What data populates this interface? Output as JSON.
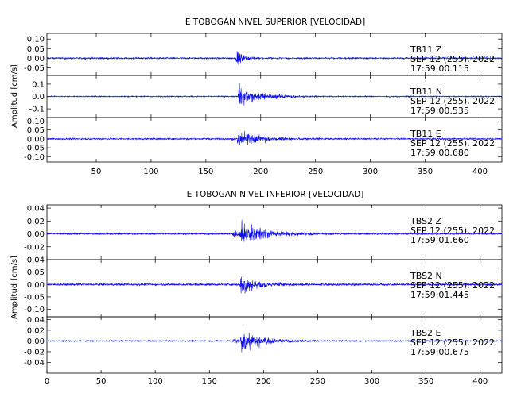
{
  "chart_data": [
    {
      "type": "line",
      "title": "E TOBOGAN NIVEL SUPERIOR [VELOCIDAD]",
      "ylabel": "Amplitud [cm/s]",
      "xlim": [
        5,
        420
      ],
      "xticks": [
        50,
        100,
        150,
        200,
        250,
        300,
        350,
        400
      ],
      "trace_color": "#1010ee",
      "panels": [
        {
          "station": "TB11",
          "component": "Z",
          "date": "SEP 12 (255), 2022",
          "time": "17:59:00.115",
          "ylim": [
            -0.09,
            0.13
          ],
          "yticks": [
            0.1,
            0.05,
            0.0,
            -0.05
          ],
          "yticklabels": [
            "0.10",
            "0.05",
            "0.00",
            "-0.05"
          ],
          "noise": 0.003,
          "bursts": [
            {
              "t0": 177,
              "amp": 0.085,
              "tau": 7
            }
          ]
        },
        {
          "station": "TB11",
          "component": "N",
          "date": "SEP 12 (255), 2022",
          "time": "17:59:00.535",
          "ylim": [
            -0.17,
            0.17
          ],
          "yticks": [
            0.1,
            0.0,
            -0.1
          ],
          "yticklabels": [
            "0.1",
            "0.0",
            "-0.1"
          ],
          "noise": 0.003,
          "bursts": [
            {
              "t0": 179,
              "amp": 0.15,
              "tau": 9
            },
            {
              "t0": 188,
              "amp": 0.05,
              "tau": 30
            }
          ]
        },
        {
          "station": "TB11",
          "component": "E",
          "date": "SEP 12 (255), 2022",
          "time": "17:59:00.680",
          "ylim": [
            -0.13,
            0.12
          ],
          "yticks": [
            0.1,
            0.05,
            0.0,
            -0.05,
            -0.1
          ],
          "yticklabels": [
            "0.10",
            "0.05",
            "0.00",
            "-0.05",
            "-0.10"
          ],
          "noise": 0.003,
          "bursts": [
            {
              "t0": 172,
              "amp": 0.012,
              "tau": 8
            },
            {
              "t0": 178,
              "amp": 0.09,
              "tau": 10
            },
            {
              "t0": 186,
              "amp": 0.035,
              "tau": 28
            }
          ]
        }
      ],
      "xticklabels": [
        "50",
        "100",
        "150",
        "200",
        "250",
        "300",
        "350",
        "400"
      ]
    },
    {
      "type": "line",
      "title": "E TOBOGAN NIVEL INFERIOR [VELOCIDAD]",
      "ylabel": "Amplitud [cm/s]",
      "xlim": [
        0,
        420
      ],
      "xticks": [
        0,
        50,
        100,
        150,
        200,
        250,
        300,
        350,
        400
      ],
      "trace_color": "#1010ee",
      "panels": [
        {
          "station": "TBS2",
          "component": "Z",
          "date": "SEP 12 (255), 2022",
          "time": "17:59:01.660",
          "ylim": [
            -0.04,
            0.045
          ],
          "yticks": [
            0.04,
            0.02,
            0.0,
            -0.02,
            -0.04
          ],
          "yticklabels": [
            "0.04",
            "0.02",
            "0.00",
            "-0.02",
            "-0.04"
          ],
          "noise": 0.0008,
          "bursts": [
            {
              "t0": 171,
              "amp": 0.012,
              "tau": 6
            },
            {
              "t0": 178,
              "amp": 0.03,
              "tau": 12
            },
            {
              "t0": 185,
              "amp": 0.012,
              "tau": 35
            }
          ]
        },
        {
          "station": "TBS2",
          "component": "N",
          "date": "SEP 12 (255), 2022",
          "time": "17:59:01.445",
          "ylim": [
            -0.13,
            0.1
          ],
          "yticks": [
            0.05,
            0.0,
            -0.05,
            -0.1
          ],
          "yticklabels": [
            "0.05",
            "0.00",
            "-0.05",
            "-0.10"
          ],
          "noise": 0.003,
          "bursts": [
            {
              "t0": 178,
              "amp": 0.075,
              "tau": 8
            },
            {
              "t0": 185,
              "amp": 0.02,
              "tau": 30
            }
          ]
        },
        {
          "station": "TBS2",
          "component": "E",
          "date": "SEP 12 (255), 2022",
          "time": "17:59:00.675",
          "ylim": [
            -0.06,
            0.045
          ],
          "yticks": [
            0.04,
            0.02,
            0.0,
            -0.02,
            -0.04
          ],
          "yticklabels": [
            "0.04",
            "0.02",
            "0.00",
            "-0.02",
            "-0.04"
          ],
          "noise": 0.0008,
          "bursts": [
            {
              "t0": 171,
              "amp": 0.01,
              "tau": 6
            },
            {
              "t0": 178,
              "amp": 0.038,
              "tau": 10
            },
            {
              "t0": 186,
              "amp": 0.012,
              "tau": 30
            }
          ]
        }
      ],
      "xticklabels": [
        "0",
        "50",
        "100",
        "150",
        "200",
        "250",
        "300",
        "350",
        "400"
      ]
    }
  ]
}
